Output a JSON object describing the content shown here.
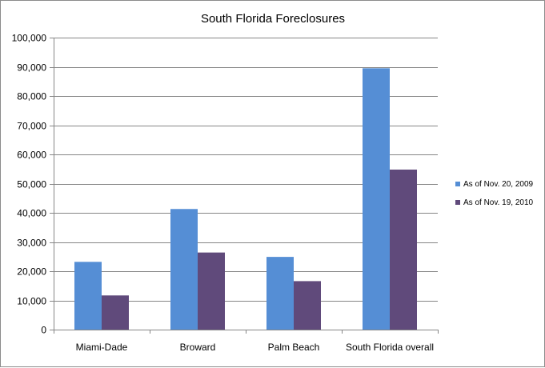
{
  "chart_data": {
    "type": "bar",
    "title": "South Florida Foreclosures",
    "xlabel": "",
    "ylabel": "",
    "categories": [
      "Miami-Dade",
      "Broward",
      "Palm Beach",
      "South Florida overall"
    ],
    "series": [
      {
        "name": "As of Nov. 20, 2009",
        "color": "#558ED5",
        "values": [
          23200,
          41300,
          24900,
          89500
        ]
      },
      {
        "name": "As of Nov. 19, 2010",
        "color": "#604A7B",
        "values": [
          11700,
          26400,
          16600,
          54800
        ]
      }
    ],
    "ylim": [
      0,
      100000
    ],
    "yticks": [
      0,
      10000,
      20000,
      30000,
      40000,
      50000,
      60000,
      70000,
      80000,
      90000,
      100000
    ],
    "ytick_labels": [
      "0",
      "10,000",
      "20,000",
      "30,000",
      "40,000",
      "50,000",
      "60,000",
      "70,000",
      "80,000",
      "90,000",
      "100,000"
    ],
    "grid": true,
    "legend_position": "right"
  }
}
